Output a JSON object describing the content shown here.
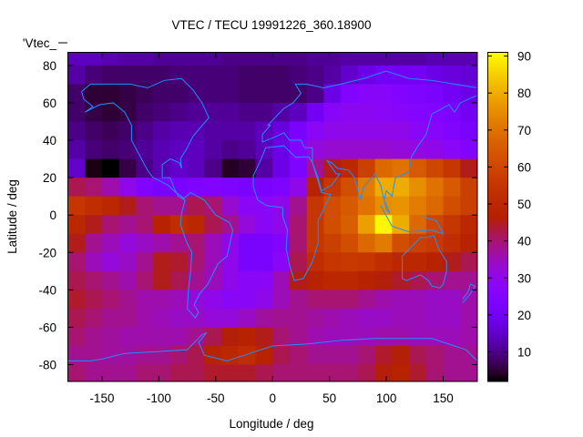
{
  "chart_data": {
    "type": "heatmap",
    "title": "VTEC / TECU 19991226_360.18900",
    "xlabel": "Longitude / deg",
    "ylabel": "Latitude / deg",
    "key_label": "'Vtec_",
    "xlim": [
      -180,
      180
    ],
    "ylim": [
      -89,
      87
    ],
    "xticks": [
      -150,
      -100,
      -50,
      0,
      50,
      100,
      150
    ],
    "yticks": [
      80,
      60,
      40,
      20,
      0,
      -20,
      -40,
      -60,
      -80
    ],
    "colorbar": {
      "range": [
        2,
        91
      ],
      "ticks": [
        10,
        20,
        30,
        40,
        50,
        60,
        70,
        80,
        90
      ],
      "palette": "black-purple-red-yellow"
    },
    "grid": false,
    "coastline_color": "#1e90ff",
    "lon_centers": [
      -172.5,
      -157.5,
      -142.5,
      -127.5,
      -112.5,
      -97.5,
      -82.5,
      -67.5,
      -52.5,
      -37.5,
      -22.5,
      -7.5,
      7.5,
      22.5,
      37.5,
      52.5,
      67.5,
      82.5,
      97.5,
      112.5,
      127.5,
      142.5,
      157.5,
      172.5
    ],
    "lat_centers": [
      85,
      75,
      65,
      55,
      45,
      35,
      25,
      15,
      5,
      -5,
      -15,
      -25,
      -35,
      -45,
      -55,
      -65,
      -75,
      -85
    ],
    "values": [
      [
        14,
        14,
        13,
        12,
        12,
        11,
        11,
        11,
        11,
        10,
        10,
        10,
        10,
        10,
        11,
        11,
        12,
        12,
        12,
        12,
        12,
        13,
        13,
        13
      ],
      [
        12,
        9,
        8,
        8,
        8,
        8,
        9,
        9,
        9,
        9,
        8,
        8,
        8,
        9,
        10,
        12,
        15,
        18,
        20,
        20,
        20,
        18,
        17,
        16
      ],
      [
        8,
        5,
        5,
        6,
        7,
        8,
        8,
        9,
        9,
        9,
        8,
        8,
        8,
        8,
        10,
        18,
        25,
        27,
        27,
        25,
        24,
        22,
        20,
        18
      ],
      [
        8,
        6,
        5,
        6,
        8,
        9,
        10,
        11,
        11,
        11,
        10,
        10,
        12,
        14,
        20,
        27,
        29,
        29,
        28,
        27,
        26,
        25,
        23,
        20
      ],
      [
        10,
        8,
        7,
        8,
        10,
        12,
        13,
        13,
        12,
        12,
        12,
        14,
        17,
        22,
        28,
        30,
        30,
        30,
        30,
        30,
        28,
        27,
        25,
        22
      ],
      [
        12,
        9,
        8,
        9,
        11,
        13,
        14,
        14,
        12,
        10,
        11,
        14,
        18,
        25,
        32,
        33,
        33,
        33,
        33,
        32,
        31,
        30,
        28,
        25
      ],
      [
        15,
        3,
        2,
        6,
        10,
        13,
        15,
        14,
        10,
        4,
        5,
        12,
        18,
        24,
        38,
        45,
        50,
        58,
        68,
        70,
        65,
        60,
        55,
        45
      ],
      [
        42,
        40,
        36,
        30,
        25,
        22,
        22,
        24,
        25,
        24,
        22,
        22,
        24,
        30,
        48,
        55,
        62,
        72,
        80,
        80,
        75,
        70,
        65,
        58
      ],
      [
        55,
        52,
        50,
        45,
        40,
        38,
        38,
        42,
        40,
        33,
        28,
        28,
        30,
        38,
        55,
        62,
        65,
        70,
        75,
        76,
        72,
        68,
        62,
        58
      ],
      [
        50,
        45,
        40,
        38,
        40,
        48,
        52,
        50,
        42,
        38,
        32,
        28,
        30,
        40,
        55,
        62,
        66,
        78,
        90,
        80,
        68,
        60,
        55,
        50
      ],
      [
        45,
        38,
        35,
        32,
        34,
        36,
        38,
        40,
        35,
        30,
        22,
        22,
        25,
        40,
        55,
        58,
        62,
        68,
        72,
        62,
        58,
        56,
        52,
        48
      ],
      [
        40,
        35,
        32,
        34,
        38,
        45,
        44,
        40,
        35,
        30,
        22,
        22,
        28,
        42,
        52,
        55,
        56,
        55,
        52,
        50,
        50,
        48,
        45,
        42
      ],
      [
        42,
        40,
        38,
        36,
        40,
        45,
        42,
        38,
        35,
        30,
        28,
        28,
        35,
        45,
        48,
        50,
        50,
        48,
        46,
        44,
        42,
        40,
        38,
        38
      ],
      [
        44,
        42,
        40,
        38,
        36,
        36,
        35,
        32,
        30,
        28,
        28,
        30,
        35,
        38,
        40,
        40,
        40,
        38,
        36,
        35,
        35,
        34,
        34,
        36
      ],
      [
        42,
        40,
        38,
        38,
        36,
        35,
        34,
        34,
        32,
        32,
        34,
        37,
        38,
        38,
        37,
        36,
        35,
        34,
        34,
        35,
        35,
        34,
        34,
        36
      ],
      [
        40,
        38,
        37,
        36,
        36,
        36,
        36,
        38,
        42,
        46,
        48,
        45,
        40,
        38,
        36,
        35,
        35,
        35,
        36,
        36,
        35,
        35,
        35,
        36
      ],
      [
        38,
        38,
        37,
        37,
        38,
        38,
        40,
        42,
        48,
        50,
        52,
        48,
        42,
        40,
        38,
        38,
        38,
        40,
        44,
        46,
        42,
        40,
        38,
        38
      ],
      [
        40,
        38,
        38,
        38,
        40,
        40,
        42,
        42,
        44,
        44,
        44,
        42,
        40,
        40,
        40,
        40,
        40,
        42,
        46,
        48,
        44,
        40,
        38,
        38
      ]
    ]
  }
}
